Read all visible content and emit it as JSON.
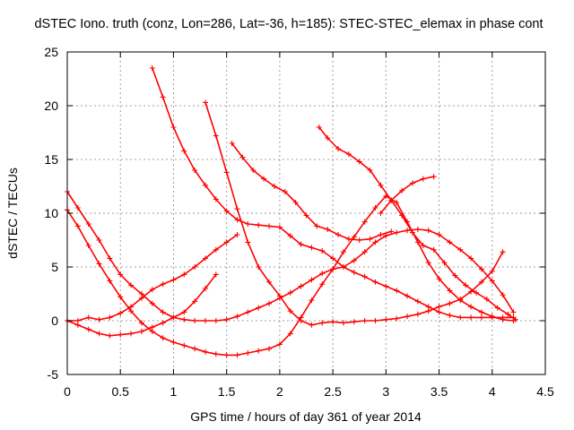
{
  "chart_data": {
    "type": "scatter",
    "title": "dSTEC Iono. truth (conz, Lon=286, Lat=-36, h=185): STEC-STEC_elemax in phase cont",
    "xlabel": "GPS time / hours of day 361 of year 2014",
    "ylabel": "dSTEC  / TECUs",
    "xlim": [
      0,
      4.5
    ],
    "ylim": [
      -5,
      25
    ],
    "xticks": [
      0,
      0.5,
      1,
      1.5,
      2,
      2.5,
      3,
      3.5,
      4,
      4.5
    ],
    "yticks": [
      -5,
      0,
      5,
      10,
      15,
      20,
      25
    ],
    "xtick_labels": [
      "0",
      "0.5",
      "1",
      "1.5",
      "2",
      "2.5",
      "3",
      "3.5",
      "4",
      "4.5"
    ],
    "ytick_labels": [
      "-5",
      "0",
      "5",
      "10",
      "15",
      "20",
      "25"
    ],
    "grid": true,
    "marker": "plus",
    "color": "#ff0000",
    "series": [
      {
        "x": [
          0,
          0.1,
          0.2,
          0.3,
          0.4,
          0.5,
          0.6,
          0.7,
          0.8,
          0.9,
          1.0,
          1.1,
          1.2,
          1.3,
          1.4,
          1.5,
          1.6,
          1.7,
          1.8,
          1.9,
          2.0,
          2.1,
          2.2,
          2.3,
          2.4,
          2.5,
          2.6,
          2.7,
          2.8,
          2.9,
          3.0,
          3.1,
          3.2,
          3.3,
          3.4,
          3.5,
          3.6,
          3.7,
          3.8,
          3.9,
          4.0,
          4.1,
          4.2
        ],
        "y": [
          12.0,
          10.5,
          9.0,
          7.5,
          5.8,
          4.3,
          3.3,
          2.5,
          1.6,
          0.8,
          0.3,
          0.1,
          0.0,
          0.0,
          0.0,
          0.1,
          0.4,
          0.8,
          1.2,
          1.6,
          2.1,
          2.6,
          3.2,
          3.8,
          4.4,
          4.8,
          5.0,
          5.6,
          6.4,
          7.3,
          7.9,
          8.2,
          8.4,
          8.5,
          8.4,
          8.0,
          7.3,
          6.6,
          5.8,
          4.8,
          3.7,
          2.4,
          0.8
        ]
      },
      {
        "x": [
          0,
          0.1,
          0.2,
          0.3,
          0.4,
          0.5,
          0.6,
          0.7,
          0.8,
          0.9,
          1.0,
          1.1,
          1.2,
          1.3,
          1.4,
          1.5,
          1.6,
          1.7,
          1.8,
          1.9,
          2.0,
          2.1,
          2.2,
          2.3,
          2.4,
          2.5,
          2.6,
          2.7,
          2.8,
          2.9,
          3.0,
          3.1,
          3.2,
          3.3,
          3.4,
          3.5,
          3.6,
          3.7,
          3.8,
          3.9,
          4.0,
          4.1,
          4.2
        ],
        "y": [
          10.3,
          8.8,
          7.0,
          5.3,
          3.7,
          2.2,
          0.9,
          -0.2,
          -1.0,
          -1.6,
          -2.0,
          -2.3,
          -2.6,
          -2.9,
          -3.1,
          -3.2,
          -3.2,
          -3.0,
          -2.8,
          -2.6,
          -2.2,
          -1.2,
          0.3,
          1.9,
          3.4,
          4.8,
          6.4,
          7.8,
          9.2,
          10.5,
          11.6,
          11.0,
          9.2,
          7.3,
          5.4,
          3.9,
          2.8,
          1.9,
          1.3,
          0.8,
          0.4,
          0.1,
          0.0
        ]
      },
      {
        "x": [
          0,
          0.1,
          0.2,
          0.3,
          0.4,
          0.5,
          0.6,
          0.7,
          0.8,
          0.9,
          1.0,
          1.1,
          1.2,
          1.3,
          1.4
        ],
        "y": [
          0.0,
          -0.4,
          -0.8,
          -1.2,
          -1.4,
          -1.3,
          -1.2,
          -1.0,
          -0.6,
          -0.2,
          0.3,
          0.8,
          1.8,
          3.0,
          4.3
        ]
      },
      {
        "x": [
          0,
          0.1,
          0.2,
          0.3,
          0.4,
          0.5,
          0.6,
          0.7,
          0.8,
          0.9,
          1.0,
          1.1,
          1.2,
          1.3,
          1.4,
          1.5,
          1.6
        ],
        "y": [
          0.0,
          0.0,
          0.3,
          0.1,
          0.3,
          0.7,
          1.3,
          2.1,
          2.9,
          3.4,
          3.8,
          4.3,
          5.0,
          5.8,
          6.6,
          7.3,
          8.0
        ]
      },
      {
        "x": [
          0.8,
          0.9,
          1.0,
          1.1,
          1.2,
          1.3,
          1.4,
          1.5,
          1.6,
          1.7,
          1.8,
          1.9,
          2.0,
          2.1,
          2.2,
          2.3,
          2.4,
          2.5,
          2.6,
          2.7,
          2.8,
          2.9,
          3.0,
          3.1,
          3.2,
          3.3,
          3.4,
          3.5,
          3.6,
          3.7,
          3.8,
          3.9,
          4.0,
          4.1,
          4.2
        ],
        "y": [
          23.5,
          20.8,
          18.0,
          15.8,
          14.0,
          12.6,
          11.3,
          10.2,
          9.4,
          9.0,
          8.9,
          8.8,
          8.7,
          7.9,
          7.1,
          6.8,
          6.5,
          5.8,
          5.0,
          4.5,
          4.1,
          3.6,
          3.2,
          2.8,
          2.3,
          1.8,
          1.3,
          0.8,
          0.5,
          0.3,
          0.3,
          0.3,
          0.3,
          0.3,
          0.3
        ]
      },
      {
        "x": [
          1.3,
          1.4,
          1.5,
          1.6,
          1.7,
          1.8,
          1.9,
          2.0,
          2.1,
          2.2,
          2.3,
          2.4,
          2.5,
          2.6,
          2.7,
          2.8,
          2.9,
          3.0,
          3.1,
          3.2,
          3.3,
          3.4,
          3.5,
          3.6,
          3.7,
          3.8,
          3.9,
          4.0,
          4.1
        ],
        "y": [
          20.3,
          17.2,
          13.8,
          10.4,
          7.3,
          5.0,
          3.6,
          2.3,
          0.9,
          0.0,
          -0.4,
          -0.2,
          -0.1,
          -0.2,
          -0.1,
          0.0,
          0.0,
          0.1,
          0.2,
          0.4,
          0.6,
          0.9,
          1.3,
          1.6,
          2.0,
          2.7,
          3.6,
          4.6,
          6.4
        ]
      },
      {
        "x": [
          1.55,
          1.65,
          1.75,
          1.85,
          1.95,
          2.05,
          2.15,
          2.25,
          2.35,
          2.45,
          2.55,
          2.65,
          2.75,
          2.85,
          2.95,
          3.05
        ],
        "y": [
          16.5,
          15.2,
          14.0,
          13.2,
          12.5,
          12.0,
          11.0,
          9.8,
          8.8,
          8.5,
          8.0,
          7.6,
          7.5,
          7.6,
          8.0,
          8.3
        ]
      },
      {
        "x": [
          2.37,
          2.45,
          2.55,
          2.65,
          2.75,
          2.85,
          2.95,
          3.05,
          3.15,
          3.25,
          3.35,
          3.45,
          3.55,
          3.65,
          3.75,
          3.85,
          3.95,
          4.05,
          4.15,
          4.22
        ],
        "y": [
          18.0,
          17.0,
          16.0,
          15.5,
          14.8,
          14.0,
          12.6,
          11.2,
          9.8,
          8.2,
          7.0,
          6.6,
          5.4,
          4.2,
          3.3,
          2.6,
          2.0,
          1.2,
          0.6,
          0.1
        ]
      },
      {
        "x": [
          2.95,
          3.05,
          3.15,
          3.25,
          3.35,
          3.45
        ],
        "y": [
          10.0,
          11.2,
          12.1,
          12.8,
          13.2,
          13.4
        ]
      }
    ]
  }
}
